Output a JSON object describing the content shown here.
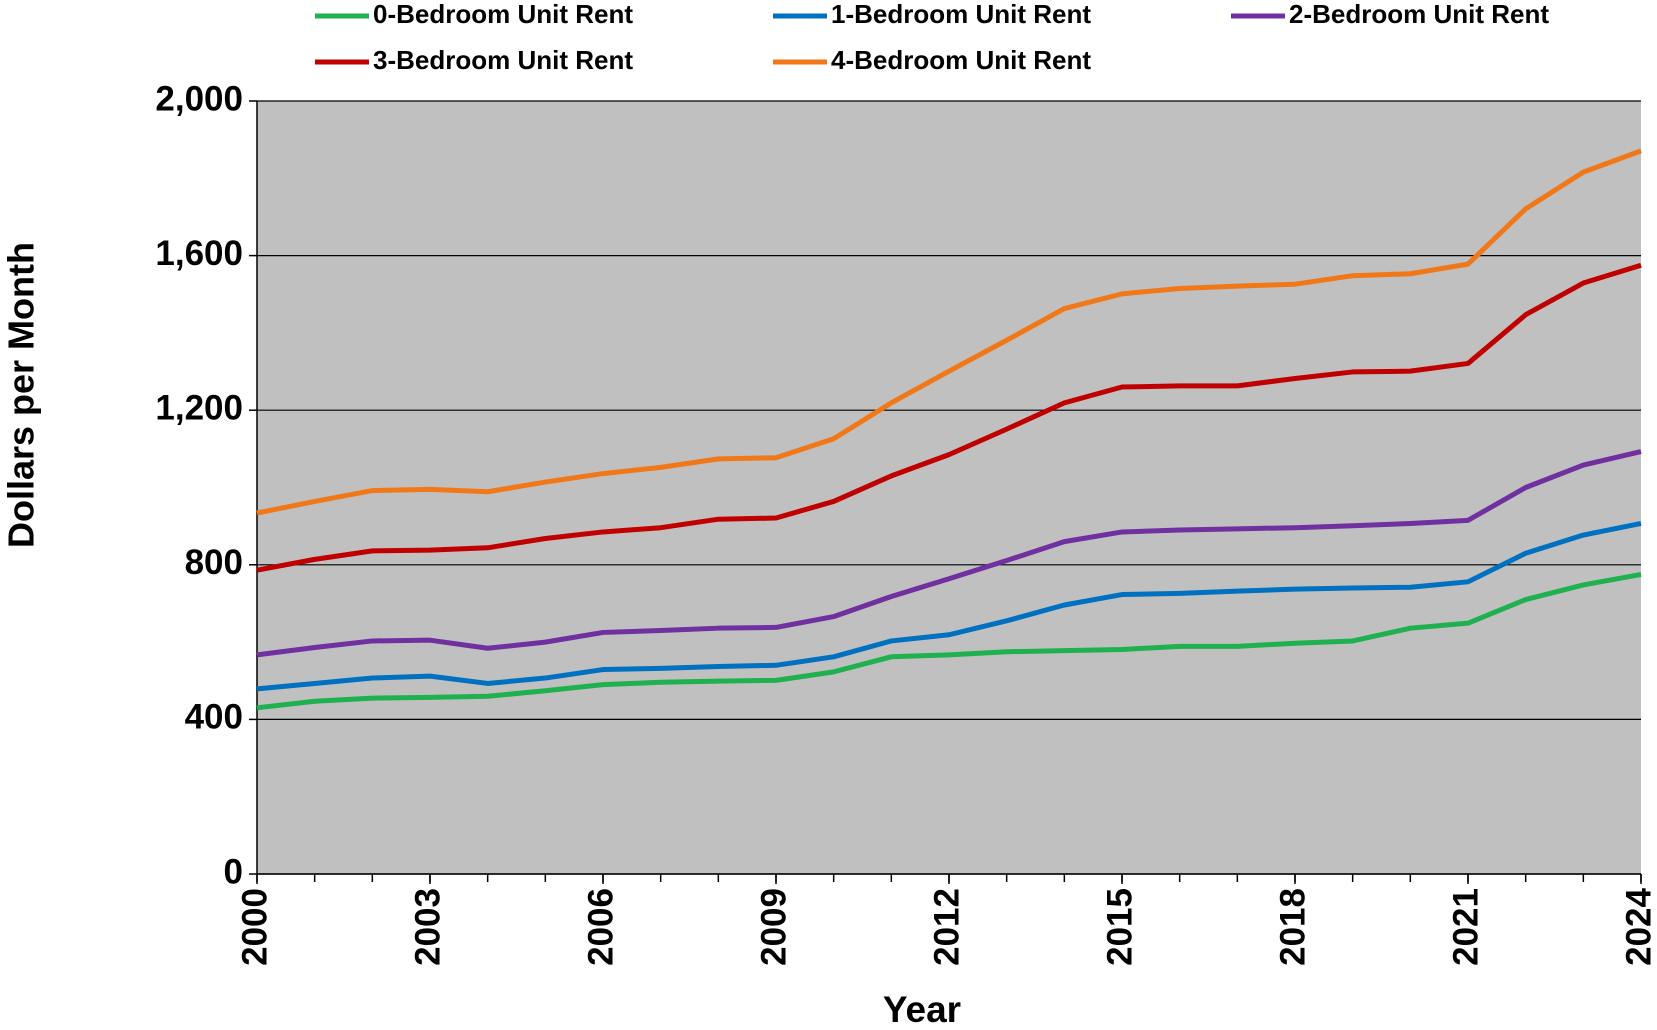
{
  "chart_data": {
    "type": "line",
    "y_label": "Dollars per Month",
    "x_label": "Year",
    "x": [
      2000,
      2001,
      2002,
      2003,
      2004,
      2005,
      2006,
      2007,
      2008,
      2009,
      2010,
      2011,
      2012,
      2013,
      2014,
      2015,
      2016,
      2017,
      2018,
      2019,
      2020,
      2021,
      2022,
      2023,
      2024
    ],
    "series": [
      {
        "name": "0-Bedroom Unit Rent",
        "color": "#1fb050",
        "values": [
          430,
          447,
          455,
          457,
          460,
          474,
          490,
          496,
          499,
          501,
          523,
          562,
          567,
          575,
          578,
          581,
          589,
          589,
          597,
          603,
          636,
          649,
          710,
          748,
          775
        ]
      },
      {
        "name": "1-Bedroom Unit Rent",
        "color": "#0070c0",
        "values": [
          479,
          493,
          507,
          512,
          493,
          507,
          529,
          532,
          537,
          540,
          562,
          603,
          619,
          655,
          696,
          723,
          726,
          732,
          737,
          740,
          742,
          756,
          830,
          877,
          907
        ]
      },
      {
        "name": "2-Bedroom Unit Rent",
        "color": "#7030a0",
        "values": [
          567,
          586,
          603,
          605,
          584,
          600,
          625,
          630,
          636,
          638,
          666,
          718,
          764,
          811,
          860,
          885,
          890,
          893,
          896,
          901,
          907,
          915,
          1000,
          1058,
          1093
        ]
      },
      {
        "name": "3-Bedroom Unit Rent",
        "color": "#c00000",
        "values": [
          786,
          814,
          836,
          838,
          844,
          868,
          885,
          896,
          918,
          921,
          964,
          1030,
          1085,
          1151,
          1219,
          1260,
          1263,
          1263,
          1282,
          1299,
          1301,
          1321,
          1447,
          1529,
          1575
        ]
      },
      {
        "name": "4-Bedroom Unit Rent",
        "color": "#f07818",
        "values": [
          934,
          964,
          992,
          995,
          989,
          1014,
          1036,
          1052,
          1074,
          1077,
          1126,
          1219,
          1301,
          1381,
          1463,
          1501,
          1515,
          1521,
          1526,
          1548,
          1553,
          1578,
          1721,
          1816,
          1871
        ]
      }
    ],
    "xlim": [
      2000,
      2024
    ],
    "xticks": [
      2000,
      2003,
      2006,
      2009,
      2012,
      2015,
      2018,
      2021,
      2024
    ],
    "ylim": [
      0,
      2000
    ],
    "yticks": [
      0,
      400,
      800,
      {
        "value": 1200,
        "label": "1,200"
      },
      {
        "value": 1600,
        "label": "1,600"
      },
      {
        "value": 2000,
        "label": "2,000"
      }
    ],
    "grid": true,
    "plot_background": "#c0c0c0",
    "legend": "top"
  }
}
